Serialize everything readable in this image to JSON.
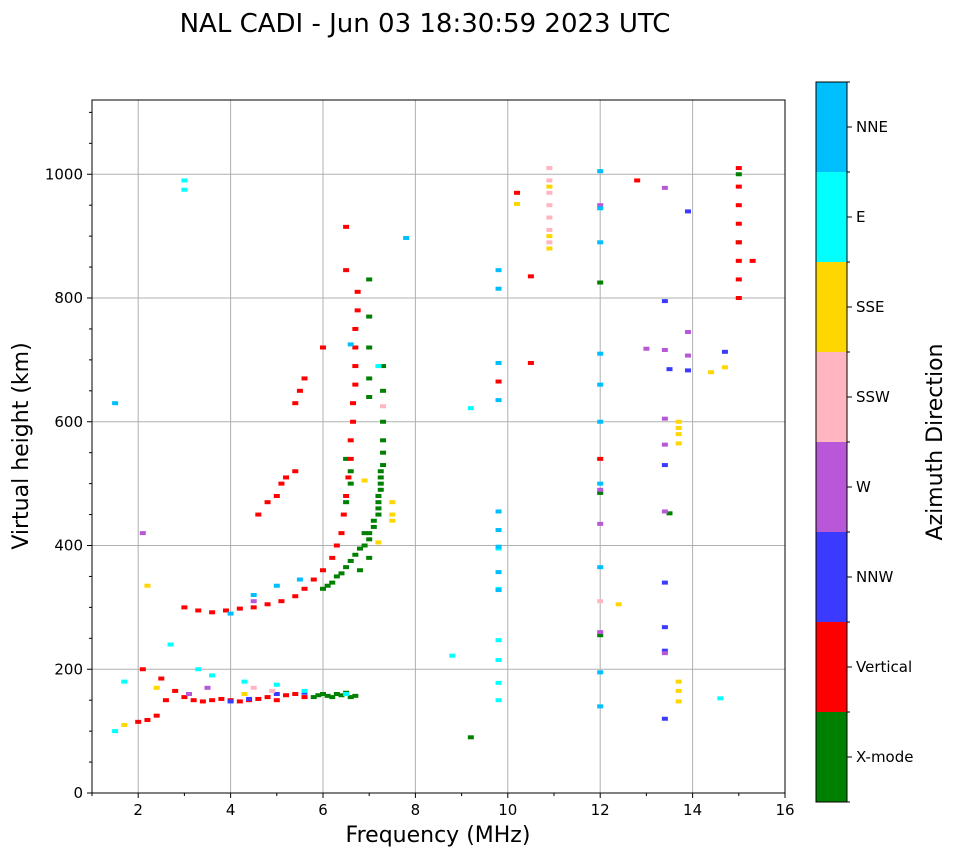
{
  "chart_data": {
    "type": "scatter",
    "title": "NAL CADI - Jun 03 18:30:59 2023 UTC",
    "xlabel": "Frequency (MHz)",
    "ylabel": "Virtual height (km)",
    "xlim": [
      1,
      16
    ],
    "ylim": [
      0,
      1120
    ],
    "xticks": [
      2,
      4,
      6,
      8,
      10,
      12,
      14,
      16
    ],
    "yticks": [
      0,
      200,
      400,
      600,
      800,
      1000
    ],
    "grid": true,
    "colorbar": {
      "label": "Azimuth Direction",
      "categories": [
        {
          "name": "X-mode",
          "color": "#008000"
        },
        {
          "name": "Vertical",
          "color": "#ff0000"
        },
        {
          "name": "NNW",
          "color": "#3b3bff"
        },
        {
          "name": "W",
          "color": "#b857d8"
        },
        {
          "name": "SSW",
          "color": "#ffb6c1"
        },
        {
          "name": "SSE",
          "color": "#ffd700"
        },
        {
          "name": "E",
          "color": "#00ffff"
        },
        {
          "name": "NNE",
          "color": "#00bfff"
        }
      ]
    },
    "series": [
      {
        "name": "X-mode",
        "points": [
          [
            5.8,
            155
          ],
          [
            5.9,
            158
          ],
          [
            6.0,
            160
          ],
          [
            6.1,
            157
          ],
          [
            6.2,
            155
          ],
          [
            6.3,
            160
          ],
          [
            6.4,
            158
          ],
          [
            6.5,
            162
          ],
          [
            6.6,
            155
          ],
          [
            6.7,
            157
          ],
          [
            6.0,
            330
          ],
          [
            6.1,
            335
          ],
          [
            6.2,
            340
          ],
          [
            6.3,
            350
          ],
          [
            6.4,
            355
          ],
          [
            6.5,
            365
          ],
          [
            6.6,
            375
          ],
          [
            6.7,
            385
          ],
          [
            6.8,
            395
          ],
          [
            6.9,
            400
          ],
          [
            7.0,
            410
          ],
          [
            7.0,
            420
          ],
          [
            7.1,
            430
          ],
          [
            7.1,
            440
          ],
          [
            7.2,
            450
          ],
          [
            7.2,
            460
          ],
          [
            7.2,
            470
          ],
          [
            7.2,
            480
          ],
          [
            7.25,
            490
          ],
          [
            7.25,
            500
          ],
          [
            7.25,
            510
          ],
          [
            7.25,
            520
          ],
          [
            7.3,
            530
          ],
          [
            7.3,
            550
          ],
          [
            7.3,
            570
          ],
          [
            7.3,
            600
          ],
          [
            7.3,
            650
          ],
          [
            7.3,
            690
          ],
          [
            6.5,
            470
          ],
          [
            6.6,
            500
          ],
          [
            6.6,
            520
          ],
          [
            6.5,
            540
          ],
          [
            6.9,
            420
          ],
          [
            7.0,
            380
          ],
          [
            6.8,
            360
          ],
          [
            7.0,
            770
          ],
          [
            7.0,
            830
          ],
          [
            7.0,
            720
          ],
          [
            7.0,
            670
          ],
          [
            7.0,
            640
          ],
          [
            9.2,
            90
          ],
          [
            12.0,
            255
          ],
          [
            12.0,
            485
          ],
          [
            12.0,
            825
          ],
          [
            13.5,
            452
          ],
          [
            15.0,
            890
          ],
          [
            15.0,
            1000
          ]
        ]
      },
      {
        "name": "Vertical",
        "points": [
          [
            2.0,
            115
          ],
          [
            2.2,
            118
          ],
          [
            2.4,
            125
          ],
          [
            2.6,
            150
          ],
          [
            2.8,
            165
          ],
          [
            3.0,
            155
          ],
          [
            3.2,
            150
          ],
          [
            3.4,
            148
          ],
          [
            3.6,
            150
          ],
          [
            3.8,
            152
          ],
          [
            4.0,
            150
          ],
          [
            4.2,
            148
          ],
          [
            4.4,
            150
          ],
          [
            4.6,
            152
          ],
          [
            4.8,
            155
          ],
          [
            5.0,
            150
          ],
          [
            5.2,
            158
          ],
          [
            5.4,
            160
          ],
          [
            5.6,
            155
          ],
          [
            2.1,
            200
          ],
          [
            2.5,
            185
          ],
          [
            3.0,
            300
          ],
          [
            3.3,
            295
          ],
          [
            3.6,
            292
          ],
          [
            3.9,
            295
          ],
          [
            4.2,
            298
          ],
          [
            4.5,
            300
          ],
          [
            4.8,
            305
          ],
          [
            5.1,
            310
          ],
          [
            5.4,
            318
          ],
          [
            5.6,
            330
          ],
          [
            5.8,
            345
          ],
          [
            6.0,
            360
          ],
          [
            6.2,
            380
          ],
          [
            6.3,
            400
          ],
          [
            6.4,
            420
          ],
          [
            6.45,
            450
          ],
          [
            6.5,
            480
          ],
          [
            6.55,
            510
          ],
          [
            6.6,
            540
          ],
          [
            6.6,
            570
          ],
          [
            6.65,
            600
          ],
          [
            6.65,
            630
          ],
          [
            6.7,
            660
          ],
          [
            6.7,
            690
          ],
          [
            6.7,
            720
          ],
          [
            6.7,
            750
          ],
          [
            6.75,
            780
          ],
          [
            6.75,
            810
          ],
          [
            6.5,
            845
          ],
          [
            6.5,
            915
          ],
          [
            4.6,
            450
          ],
          [
            4.8,
            470
          ],
          [
            5.0,
            480
          ],
          [
            5.1,
            500
          ],
          [
            5.2,
            510
          ],
          [
            5.4,
            520
          ],
          [
            5.4,
            630
          ],
          [
            5.5,
            650
          ],
          [
            5.6,
            670
          ],
          [
            6.0,
            720
          ],
          [
            9.8,
            665
          ],
          [
            10.2,
            970
          ],
          [
            10.5,
            835
          ],
          [
            10.5,
            695
          ],
          [
            12.0,
            540
          ],
          [
            12.8,
            990
          ],
          [
            15.0,
            800
          ],
          [
            15.0,
            830
          ],
          [
            15.0,
            860
          ],
          [
            15.0,
            890
          ],
          [
            15.0,
            920
          ],
          [
            15.0,
            950
          ],
          [
            15.0,
            980
          ],
          [
            15.0,
            1010
          ],
          [
            15.3,
            860
          ]
        ]
      },
      {
        "name": "NNW",
        "points": [
          [
            4.0,
            148
          ],
          [
            4.4,
            152
          ],
          [
            5.0,
            160
          ],
          [
            5.6,
            162
          ],
          [
            13.4,
            795
          ],
          [
            13.5,
            685
          ],
          [
            13.4,
            530
          ],
          [
            13.4,
            340
          ],
          [
            13.4,
            268
          ],
          [
            13.4,
            230
          ],
          [
            13.4,
            120
          ],
          [
            13.9,
            940
          ],
          [
            13.9,
            683
          ],
          [
            14.7,
            713
          ]
        ]
      },
      {
        "name": "W",
        "points": [
          [
            2.1,
            420
          ],
          [
            3.1,
            160
          ],
          [
            3.5,
            170
          ],
          [
            4.5,
            310
          ],
          [
            12.0,
            260
          ],
          [
            12.0,
            435
          ],
          [
            12.0,
            490
          ],
          [
            12.0,
            950
          ],
          [
            13.0,
            718
          ],
          [
            13.4,
            978
          ],
          [
            13.4,
            716
          ],
          [
            13.4,
            605
          ],
          [
            13.4,
            563
          ],
          [
            13.4,
            455
          ],
          [
            13.4,
            226
          ],
          [
            13.9,
            745
          ],
          [
            13.9,
            707
          ]
        ]
      },
      {
        "name": "SSW",
        "points": [
          [
            4.5,
            170
          ],
          [
            4.9,
            165
          ],
          [
            10.9,
            890
          ],
          [
            10.9,
            910
          ],
          [
            10.9,
            930
          ],
          [
            10.9,
            950
          ],
          [
            10.9,
            970
          ],
          [
            10.9,
            990
          ],
          [
            10.9,
            1010
          ],
          [
            12.0,
            310
          ],
          [
            7.3,
            625
          ]
        ]
      },
      {
        "name": "SSE",
        "points": [
          [
            1.7,
            110
          ],
          [
            2.2,
            335
          ],
          [
            2.4,
            170
          ],
          [
            4.3,
            160
          ],
          [
            7.5,
            450
          ],
          [
            7.5,
            470
          ],
          [
            7.5,
            440
          ],
          [
            7.2,
            405
          ],
          [
            6.9,
            505
          ],
          [
            10.2,
            952
          ],
          [
            10.9,
            880
          ],
          [
            10.9,
            900
          ],
          [
            10.9,
            980
          ],
          [
            12.4,
            305
          ],
          [
            13.7,
            600
          ],
          [
            13.7,
            590
          ],
          [
            13.7,
            580
          ],
          [
            13.7,
            565
          ],
          [
            13.7,
            180
          ],
          [
            13.7,
            165
          ],
          [
            13.7,
            148
          ],
          [
            14.4,
            680
          ],
          [
            14.7,
            688
          ]
        ]
      },
      {
        "name": "E",
        "points": [
          [
            1.5,
            100
          ],
          [
            1.7,
            180
          ],
          [
            2.7,
            240
          ],
          [
            3.0,
            990
          ],
          [
            3.0,
            975
          ],
          [
            3.3,
            200
          ],
          [
            3.6,
            190
          ],
          [
            4.3,
            180
          ],
          [
            5.0,
            175
          ],
          [
            5.6,
            165
          ],
          [
            6.5,
            160
          ],
          [
            7.2,
            690
          ],
          [
            9.8,
            395
          ],
          [
            9.8,
            330
          ],
          [
            9.8,
            215
          ],
          [
            9.8,
            178
          ],
          [
            9.8,
            247
          ],
          [
            9.8,
            150
          ],
          [
            9.2,
            622
          ],
          [
            8.8,
            222
          ],
          [
            14.6,
            153
          ]
        ]
      },
      {
        "name": "NNE",
        "points": [
          [
            1.5,
            630
          ],
          [
            4.0,
            290
          ],
          [
            4.5,
            320
          ],
          [
            5.0,
            335
          ],
          [
            5.5,
            345
          ],
          [
            6.6,
            725
          ],
          [
            7.8,
            897
          ],
          [
            9.8,
            845
          ],
          [
            9.8,
            815
          ],
          [
            9.8,
            695
          ],
          [
            9.8,
            635
          ],
          [
            9.8,
            455
          ],
          [
            9.8,
            425
          ],
          [
            9.8,
            398
          ],
          [
            9.8,
            357
          ],
          [
            9.8,
            328
          ],
          [
            12.0,
            1005
          ],
          [
            12.0,
            945
          ],
          [
            12.0,
            890
          ],
          [
            12.0,
            710
          ],
          [
            12.0,
            660
          ],
          [
            12.0,
            600
          ],
          [
            12.0,
            500
          ],
          [
            12.0,
            365
          ],
          [
            12.0,
            195
          ],
          [
            12.0,
            140
          ]
        ]
      }
    ]
  }
}
